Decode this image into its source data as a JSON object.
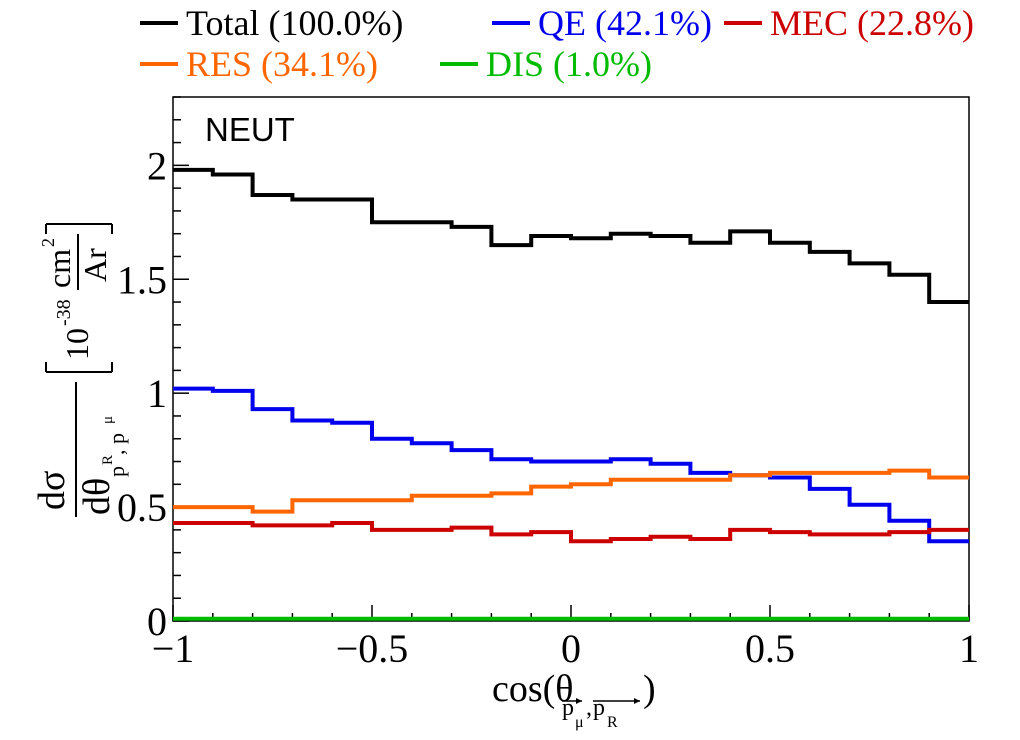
{
  "chart_data": {
    "type": "line",
    "step": true,
    "annotation": "NEUT",
    "xlabel": "cos(θ",
    "xlabel_sub1": "p",
    "xlabel_sub1_sub": "μ",
    "xlabel_sub2": "p",
    "xlabel_sub2_sub": "R",
    "xlabel_close": ")",
    "ylabel_numerator": "dσ",
    "ylabel_denominator": "dθ",
    "ylabel_denominator_sub": "p",
    "ylabel_denominator_sub_sup1": "R",
    "ylabel_denominator_sub_sep": ", p",
    "ylabel_denominator_sub_sup2": "μ",
    "ylabel_unit_prefix": "10",
    "ylabel_unit_exp": "-38",
    "ylabel_unit_numerator": "cm",
    "ylabel_unit_numerator_exp": "2",
    "ylabel_unit_denominator": "Ar",
    "xlim": [
      -1,
      1
    ],
    "ylim": [
      0,
      2.3
    ],
    "xticks": [
      -1,
      -0.5,
      0,
      0.5,
      1
    ],
    "xtick_labels": [
      "−1",
      "−0.5",
      "0",
      "0.5",
      "1"
    ],
    "yticks": [
      0,
      0.5,
      1,
      1.5,
      2
    ],
    "ytick_labels": [
      "0",
      "0.5",
      "1",
      "1.5",
      "2"
    ],
    "bin_edges": [
      -1,
      -0.9,
      -0.8,
      -0.7,
      -0.6,
      -0.5,
      -0.4,
      -0.3,
      -0.2,
      -0.1,
      0,
      0.1,
      0.2,
      0.3,
      0.4,
      0.5,
      0.6,
      0.7,
      0.8,
      0.9,
      1
    ],
    "series": [
      {
        "name": "Total (100.0%)",
        "color": "#000000",
        "values": [
          1.98,
          1.96,
          1.87,
          1.85,
          1.85,
          1.75,
          1.75,
          1.73,
          1.65,
          1.69,
          1.68,
          1.7,
          1.69,
          1.66,
          1.71,
          1.66,
          1.62,
          1.57,
          1.52,
          1.4
        ]
      },
      {
        "name": "QE (42.1%)",
        "color": "#0000ee",
        "values": [
          1.02,
          1.01,
          0.93,
          0.88,
          0.87,
          0.8,
          0.78,
          0.75,
          0.71,
          0.7,
          0.7,
          0.71,
          0.69,
          0.65,
          0.64,
          0.63,
          0.58,
          0.51,
          0.44,
          0.35
        ]
      },
      {
        "name": "MEC (22.8%)",
        "color": "#cc0000",
        "values": [
          0.43,
          0.43,
          0.42,
          0.42,
          0.43,
          0.4,
          0.4,
          0.41,
          0.38,
          0.39,
          0.35,
          0.36,
          0.37,
          0.36,
          0.4,
          0.39,
          0.38,
          0.38,
          0.39,
          0.4
        ]
      },
      {
        "name": "RES (34.1%)",
        "color": "#ff6600",
        "values": [
          0.5,
          0.5,
          0.48,
          0.53,
          0.53,
          0.53,
          0.55,
          0.55,
          0.56,
          0.59,
          0.6,
          0.62,
          0.62,
          0.62,
          0.64,
          0.65,
          0.65,
          0.65,
          0.66,
          0.63
        ]
      },
      {
        "name": "DIS (1.0%)",
        "color": "#00bb00",
        "values": [
          0.01,
          0.01,
          0.01,
          0.01,
          0.01,
          0.01,
          0.01,
          0.01,
          0.01,
          0.01,
          0.01,
          0.01,
          0.01,
          0.01,
          0.01,
          0.01,
          0.01,
          0.01,
          0.01,
          0.01
        ]
      }
    ],
    "legend_layout": [
      [
        0,
        1,
        2
      ],
      [
        3,
        4
      ]
    ]
  }
}
